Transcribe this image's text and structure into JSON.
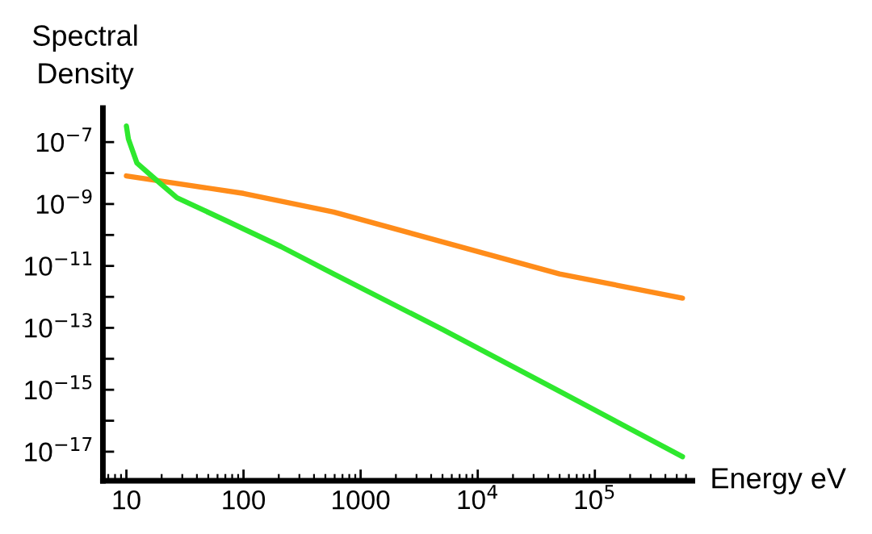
{
  "chart_data": {
    "type": "line",
    "ylabel": "Spectral\nDensity",
    "xlabel": "Energy eV",
    "log": "xy",
    "grid": false,
    "legend": false,
    "xlim": [
      6.3,
      680000
    ],
    "ylim": [
      1.15e-18,
      1.26e-06
    ],
    "xticks": [
      10,
      100,
      1000,
      {
        "value": 10000,
        "label": "10$^{4}$"
      },
      {
        "value": 100000,
        "label": "10$^{5}$"
      }
    ],
    "yticks": [
      {
        "value": 1e-07,
        "label": "10$^{−7}$"
      },
      {
        "value": 1e-08,
        "label": null
      },
      {
        "value": 1e-09,
        "label": "10$^{−9}$"
      },
      {
        "value": 1e-10,
        "label": null
      },
      {
        "value": 1e-11,
        "label": "10$^{−11}$"
      },
      {
        "value": 1e-12,
        "label": null
      },
      {
        "value": 1e-13,
        "label": "10$^{−13}$"
      },
      {
        "value": 1e-14,
        "label": null
      },
      {
        "value": 1e-15,
        "label": "10$^{−15}$"
      },
      {
        "value": 1e-16,
        "label": null
      },
      {
        "value": 1e-17,
        "label": "10$^{−17}$"
      }
    ],
    "series": [
      {
        "color": "#ff8c1a",
        "x": [
          10,
          100,
          589,
          5000,
          50000,
          560000
        ],
        "values": [
          8.1e-09,
          2.2e-09,
          5.5e-10,
          6e-11,
          5.5e-12,
          9.1e-13
        ]
      },
      {
        "color": "#2ee82e",
        "x": [
          10,
          10.4,
          12.3,
          17,
          27,
          74,
          209,
          589,
          5000,
          50000,
          560000
        ],
        "values": [
          3.3e-07,
          1.26e-07,
          2.1e-08,
          7.2e-09,
          1.6e-09,
          2.7e-10,
          4.2e-11,
          5.5e-12,
          8.9e-14,
          8.9e-16,
          6.9e-18
        ]
      }
    ]
  }
}
